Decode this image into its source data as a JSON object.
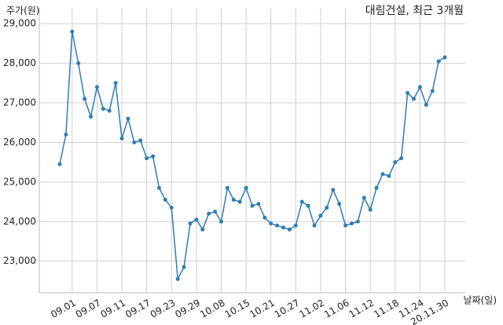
{
  "chart_data": {
    "type": "line",
    "title": "대림건설, 최근 3개월",
    "y_label": "주가(원)",
    "x_label": "날짜(일)",
    "categories": [
      null,
      null,
      "09.01",
      null,
      null,
      null,
      "09.07",
      null,
      null,
      null,
      "09.11",
      null,
      null,
      null,
      "09.17",
      null,
      null,
      null,
      "09.23",
      null,
      null,
      null,
      "09.29",
      null,
      null,
      null,
      "10.08",
      null,
      null,
      null,
      "10.15",
      null,
      null,
      null,
      "10.21",
      null,
      null,
      null,
      "10.27",
      null,
      null,
      null,
      "11.02",
      null,
      null,
      null,
      "11.06",
      null,
      null,
      null,
      "11.12",
      null,
      null,
      null,
      "11.18",
      null,
      null,
      null,
      "11.24",
      null,
      null,
      null,
      "20.11.30"
    ],
    "series": [
      {
        "color": "#2e7db3",
        "values": [
          25450,
          26200,
          28800,
          28000,
          27100,
          26650,
          27400,
          26850,
          26800,
          27500,
          26100,
          26600,
          26000,
          26050,
          25600,
          25650,
          24850,
          24550,
          24350,
          22550,
          22850,
          23950,
          24050,
          23800,
          24200,
          24250,
          24000,
          24850,
          24550,
          24500,
          24850,
          24400,
          24450,
          24100,
          23950,
          23900,
          23850,
          23800,
          23900,
          24500,
          24400,
          23900,
          24150,
          24350,
          24800,
          24450,
          23900,
          23950,
          24000,
          24600,
          24300,
          24850,
          25200,
          25150,
          25500,
          25600,
          27250,
          27100,
          27400,
          26950,
          27300,
          28050,
          28150
        ]
      }
    ],
    "ylim": [
      22200,
      29400
    ],
    "yticks": [
      {
        "value": 23000,
        "label": "23,000"
      },
      {
        "value": 24000,
        "label": "24,000"
      },
      {
        "value": 25000,
        "label": "25,000"
      },
      {
        "value": 26000,
        "label": "26,000"
      },
      {
        "value": 27000,
        "label": "27,000"
      },
      {
        "value": 28000,
        "label": "28,000"
      },
      {
        "value": 29000,
        "label": "29,000"
      }
    ],
    "grid": true
  }
}
